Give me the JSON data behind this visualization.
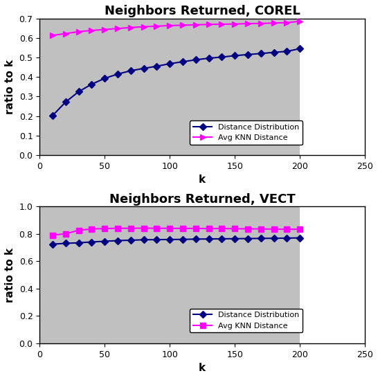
{
  "corel": {
    "title": "Neighbors Returned, COREL",
    "k_values": [
      10,
      20,
      30,
      40,
      50,
      60,
      70,
      80,
      90,
      100,
      110,
      120,
      130,
      140,
      150,
      160,
      170,
      180,
      190,
      200
    ],
    "dist_dist": [
      0.203,
      0.272,
      0.325,
      0.363,
      0.393,
      0.415,
      0.432,
      0.444,
      0.455,
      0.468,
      0.478,
      0.488,
      0.496,
      0.502,
      0.509,
      0.515,
      0.52,
      0.526,
      0.531,
      0.545
    ],
    "avg_knn": [
      0.613,
      0.622,
      0.632,
      0.638,
      0.643,
      0.648,
      0.653,
      0.657,
      0.66,
      0.663,
      0.665,
      0.667,
      0.669,
      0.67,
      0.671,
      0.673,
      0.674,
      0.676,
      0.678,
      0.685
    ],
    "ylim": [
      0,
      0.7
    ],
    "yticks": [
      0,
      0.1,
      0.2,
      0.3,
      0.4,
      0.5,
      0.6,
      0.7
    ],
    "magenta_marker": ">"
  },
  "vect": {
    "title": "Neighbors Returned, VECT",
    "k_values": [
      10,
      20,
      30,
      40,
      50,
      60,
      70,
      80,
      90,
      100,
      110,
      120,
      130,
      140,
      150,
      160,
      170,
      180,
      190,
      200
    ],
    "dist_dist": [
      0.724,
      0.73,
      0.734,
      0.74,
      0.745,
      0.75,
      0.753,
      0.756,
      0.757,
      0.758,
      0.759,
      0.761,
      0.762,
      0.763,
      0.764,
      0.765,
      0.766,
      0.767,
      0.768,
      0.77
    ],
    "avg_knn": [
      0.79,
      0.8,
      0.825,
      0.835,
      0.838,
      0.84,
      0.84,
      0.841,
      0.84,
      0.84,
      0.839,
      0.839,
      0.838,
      0.838,
      0.837,
      0.836,
      0.835,
      0.834,
      0.833,
      0.833
    ],
    "ylim": [
      0,
      1.0
    ],
    "yticks": [
      0,
      0.2,
      0.4,
      0.6,
      0.8,
      1.0
    ],
    "magenta_marker": "s"
  },
  "xlim": [
    0,
    250
  ],
  "plot_xlim": [
    0,
    205
  ],
  "xticks": [
    0,
    50,
    100,
    150,
    200,
    250
  ],
  "xlabel": "k",
  "ylabel": "ratio to k",
  "blue_color": "#000080",
  "magenta_color": "#FF00FF",
  "bg_color": "#C0C0C0",
  "white_color": "#FFFFFF",
  "legend_labels": [
    "Distance Distribution",
    "Avg KNN Distance"
  ],
  "title_fontsize": 13,
  "axis_fontsize": 11,
  "tick_fontsize": 9,
  "legend_fontsize": 8
}
